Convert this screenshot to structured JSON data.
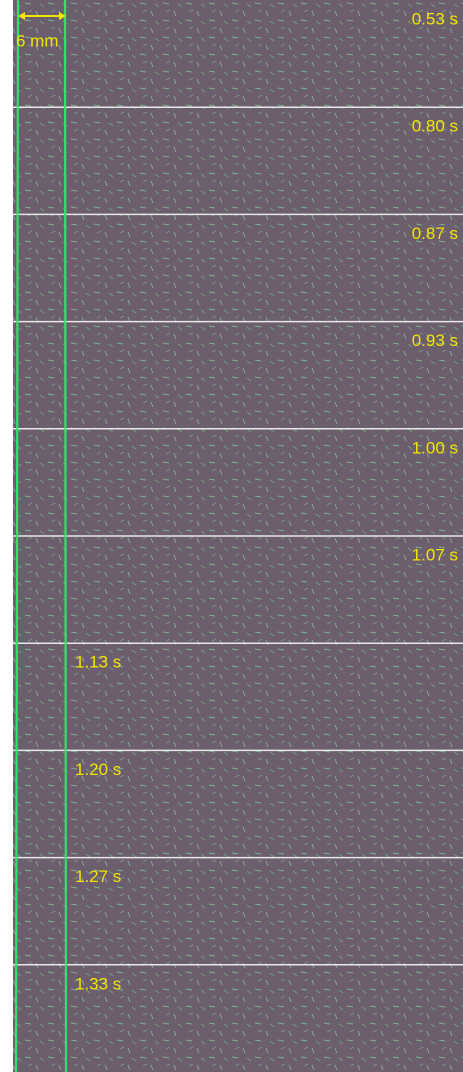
{
  "scale_bar": {
    "label": "6 mm"
  },
  "panels": [
    {
      "label": "0.53 s"
    },
    {
      "label": "0.80 s"
    },
    {
      "label": "0.87 s"
    },
    {
      "label": "0.93 s"
    },
    {
      "label": "1.00 s"
    },
    {
      "label": "1.07 s"
    },
    {
      "label": "1.13 s"
    },
    {
      "label": "1.20 s"
    },
    {
      "label": "1.27 s"
    },
    {
      "label": "1.33 s"
    }
  ]
}
